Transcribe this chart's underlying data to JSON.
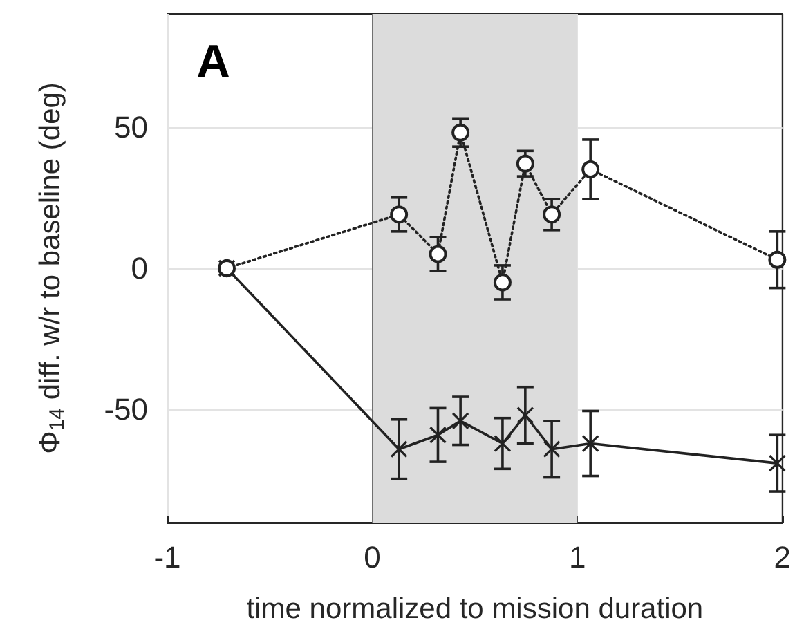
{
  "chart_data": {
    "type": "line",
    "xlabel": "time normalized to mission duration",
    "ylabel": "Φ$_{14}$ diff. w/r to baseline (deg)",
    "annotations": [
      "A"
    ],
    "xlim": [
      -1,
      2
    ],
    "xticks": [
      -1,
      0,
      1,
      2
    ],
    "ylim": [
      -90,
      90
    ],
    "yticks": [
      -50,
      0,
      50
    ],
    "grid": true,
    "bands": [
      {
        "axis": "x",
        "from": 0,
        "to": 1,
        "color": "#dcdcdc"
      }
    ],
    "series": [
      {
        "color": "#222222",
        "marker": "circle",
        "line_style": "dotted",
        "x": [
          -0.71,
          0.13,
          0.32,
          0.43,
          0.635,
          0.746,
          0.875,
          1.064,
          1.975
        ],
        "values": [
          0,
          19,
          5,
          48,
          -5,
          37,
          19,
          35,
          3
        ],
        "errors": [
          null,
          6,
          6,
          5,
          6,
          4.5,
          5.5,
          10.5,
          10
        ]
      },
      {
        "color": "#222222",
        "marker": "cross",
        "line_style": "solid",
        "x": [
          -0.71,
          0.13,
          0.32,
          0.43,
          0.635,
          0.746,
          0.875,
          1.064,
          1.975
        ],
        "values": [
          0,
          -64,
          -59,
          -54,
          -62,
          -52,
          -64,
          -62,
          -69
        ],
        "errors": [
          null,
          10.5,
          9.5,
          8.5,
          9,
          10,
          10,
          11.5,
          10
        ]
      }
    ]
  }
}
